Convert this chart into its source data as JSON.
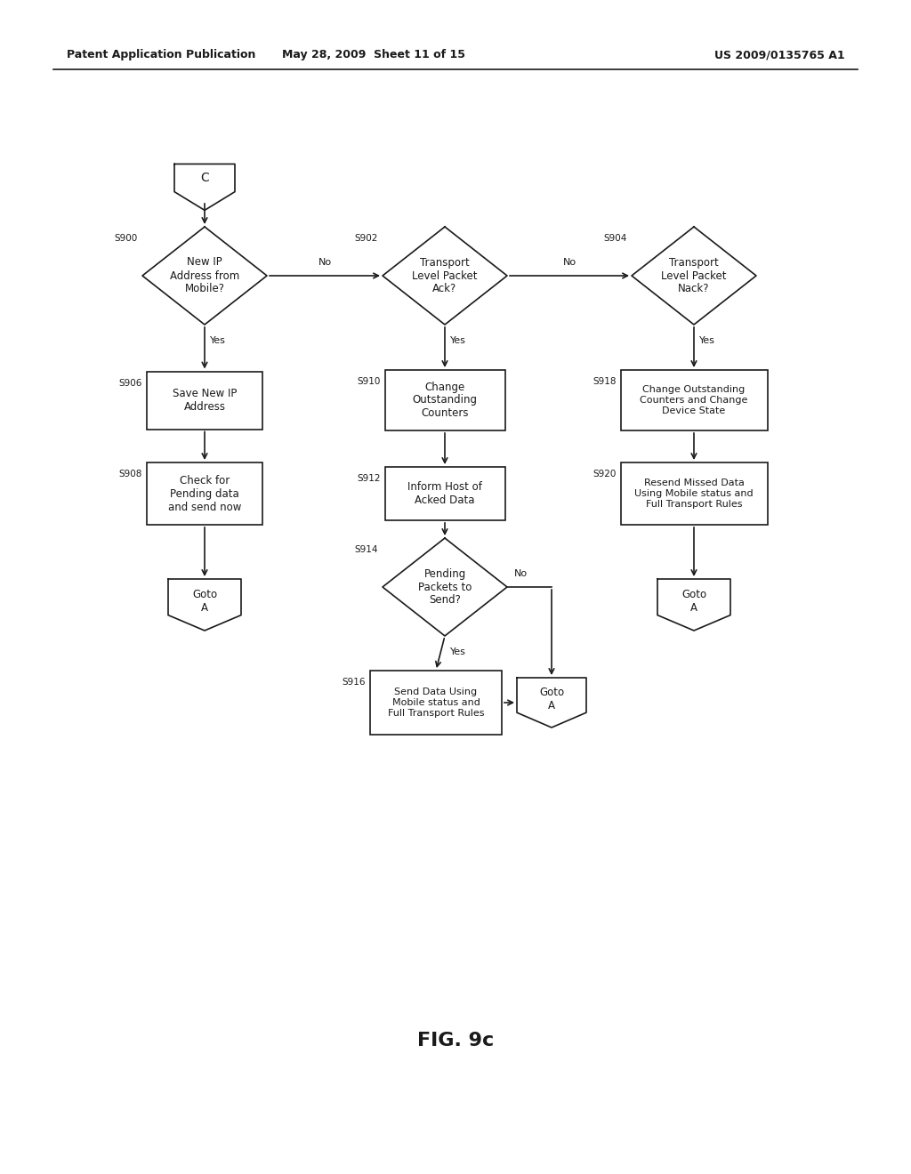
{
  "header_left": "Patent Application Publication",
  "header_mid": "May 28, 2009  Sheet 11 of 15",
  "header_right": "US 2009/0135765 A1",
  "figure_label": "FIG. 9c",
  "bg_color": "#ffffff",
  "line_color": "#1a1a1a",
  "text_color": "#1a1a1a"
}
